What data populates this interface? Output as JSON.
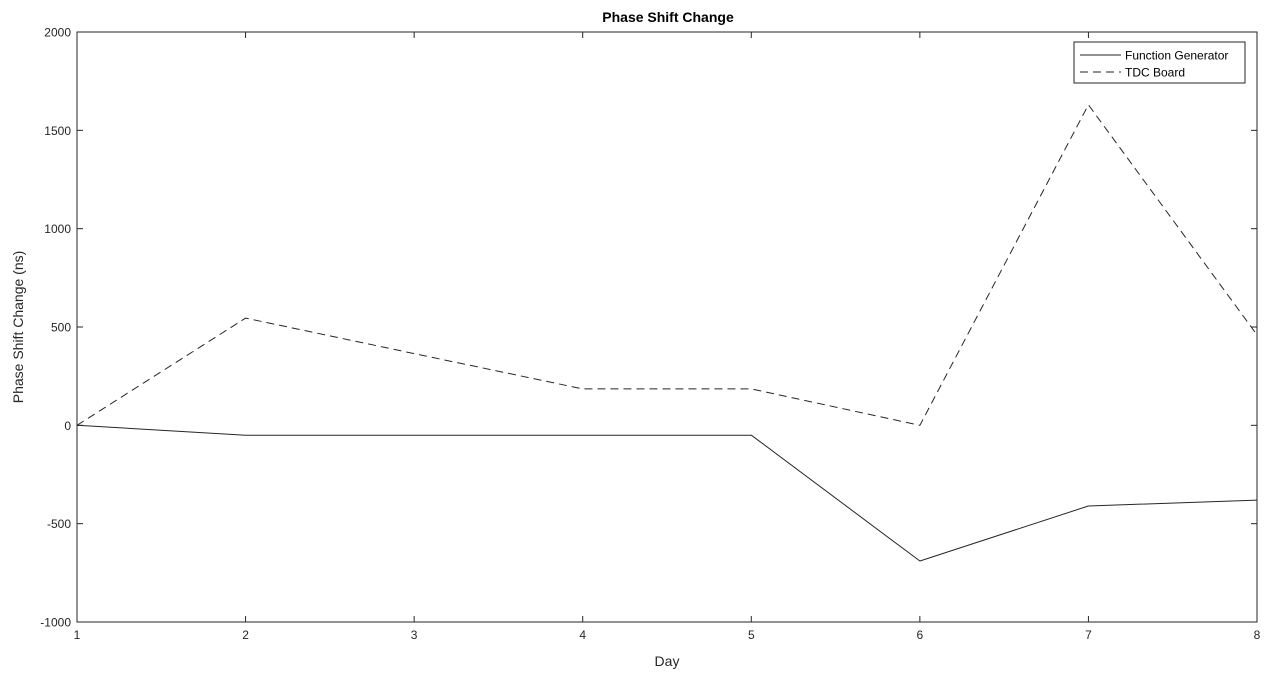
{
  "chart_data": {
    "type": "line",
    "title": "Phase Shift Change",
    "xlabel": "Day",
    "ylabel": "Phase Shift Change (ns)",
    "xlim": [
      1,
      8
    ],
    "ylim": [
      -1000,
      2000
    ],
    "x_ticks": [
      1,
      2,
      3,
      4,
      5,
      6,
      7,
      8
    ],
    "y_ticks": [
      -1000,
      -500,
      0,
      500,
      1000,
      1500,
      2000
    ],
    "x": [
      1,
      2,
      3,
      4,
      5,
      6,
      7,
      8
    ],
    "series": [
      {
        "name": "Function Generator",
        "line_style": "solid",
        "color": "#262626",
        "values": [
          0,
          -50,
          -50,
          -50,
          -50,
          -690,
          -410,
          -380
        ]
      },
      {
        "name": "TDC Board",
        "line_style": "dashed",
        "color": "#262626",
        "values": [
          0,
          545,
          365,
          185,
          185,
          0,
          1630,
          460
        ]
      }
    ],
    "grid": false,
    "legend_position": "top-right",
    "axis_color": "#262626",
    "background": "#ffffff"
  }
}
